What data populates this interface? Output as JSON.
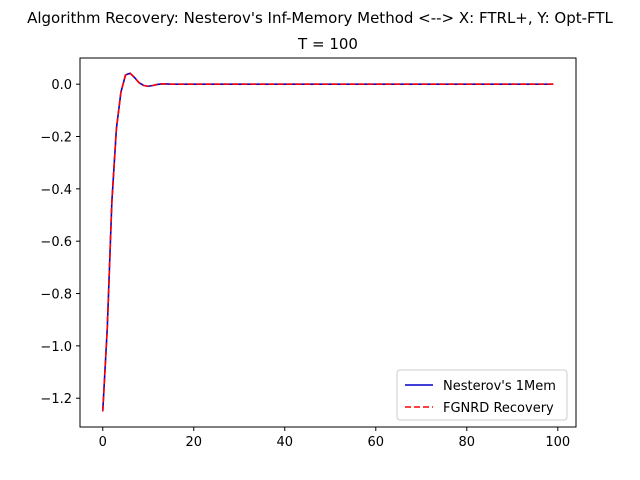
{
  "chart_data": {
    "type": "line",
    "suptitle": "Algorithm Recovery: Nesterov's Inf-Memory Method <--> X: FTRL+, Y: Opt-FTL",
    "title": "T = 100",
    "xlabel": "",
    "ylabel": "",
    "xlim": [
      -5,
      104
    ],
    "ylim": [
      -1.31,
      0.1
    ],
    "x_ticks": [
      0,
      20,
      40,
      60,
      80,
      100
    ],
    "y_ticks": [
      0.0,
      -0.2,
      -0.4,
      -0.6,
      -0.8,
      -1.0,
      -1.2
    ],
    "y_tick_labels": [
      "0.0",
      "−0.2",
      "−0.4",
      "−0.6",
      "−0.8",
      "−1.0",
      "−1.2"
    ],
    "grid": false,
    "legend_position": "lower-right",
    "x": [
      0,
      1,
      2,
      3,
      4,
      5,
      6,
      7,
      8,
      9,
      10,
      11,
      12,
      13,
      14,
      15,
      16,
      17,
      18,
      19,
      20,
      21,
      22,
      23,
      24,
      25,
      26,
      27,
      28,
      29,
      30,
      31,
      32,
      33,
      34,
      35,
      36,
      37,
      38,
      39,
      40,
      41,
      42,
      43,
      44,
      45,
      46,
      47,
      48,
      49,
      50,
      51,
      52,
      53,
      54,
      55,
      56,
      57,
      58,
      59,
      60,
      61,
      62,
      63,
      64,
      65,
      66,
      67,
      68,
      69,
      70,
      71,
      72,
      73,
      74,
      75,
      76,
      77,
      78,
      79,
      80,
      81,
      82,
      83,
      84,
      85,
      86,
      87,
      88,
      89,
      90,
      91,
      92,
      93,
      94,
      95,
      96,
      97,
      98,
      99
    ],
    "series": [
      {
        "name": "Nesterov's 1Mem",
        "color": "#0000cc",
        "dash": "solid",
        "values": [
          -1.25,
          -0.93,
          -0.45,
          -0.17,
          -0.03,
          0.035,
          0.042,
          0.025,
          0.005,
          -0.005,
          -0.008,
          -0.005,
          -0.001,
          0.001,
          0.001,
          0,
          0,
          0,
          0,
          0,
          0,
          0,
          0,
          0,
          0,
          0,
          0,
          0,
          0,
          0,
          0,
          0,
          0,
          0,
          0,
          0,
          0,
          0,
          0,
          0,
          0,
          0,
          0,
          0,
          0,
          0,
          0,
          0,
          0,
          0,
          0,
          0,
          0,
          0,
          0,
          0,
          0,
          0,
          0,
          0,
          0,
          0,
          0,
          0,
          0,
          0,
          0,
          0,
          0,
          0,
          0,
          0,
          0,
          0,
          0,
          0,
          0,
          0,
          0,
          0,
          0,
          0,
          0,
          0,
          0,
          0,
          0,
          0,
          0,
          0,
          0,
          0,
          0,
          0,
          0,
          0,
          0,
          0,
          0,
          0
        ]
      },
      {
        "name": "FGNRD Recovery",
        "color": "#ff0000",
        "dash": "dashed",
        "values": [
          -1.25,
          -0.93,
          -0.45,
          -0.17,
          -0.03,
          0.035,
          0.042,
          0.025,
          0.005,
          -0.005,
          -0.008,
          -0.005,
          -0.001,
          0.001,
          0.001,
          0,
          0,
          0,
          0,
          0,
          0,
          0,
          0,
          0,
          0,
          0,
          0,
          0,
          0,
          0,
          0,
          0,
          0,
          0,
          0,
          0,
          0,
          0,
          0,
          0,
          0,
          0,
          0,
          0,
          0,
          0,
          0,
          0,
          0,
          0,
          0,
          0,
          0,
          0,
          0,
          0,
          0,
          0,
          0,
          0,
          0,
          0,
          0,
          0,
          0,
          0,
          0,
          0,
          0,
          0,
          0,
          0,
          0,
          0,
          0,
          0,
          0,
          0,
          0,
          0,
          0,
          0,
          0,
          0,
          0,
          0,
          0,
          0,
          0,
          0,
          0,
          0,
          0,
          0,
          0,
          0,
          0,
          0,
          0,
          0
        ]
      }
    ]
  }
}
